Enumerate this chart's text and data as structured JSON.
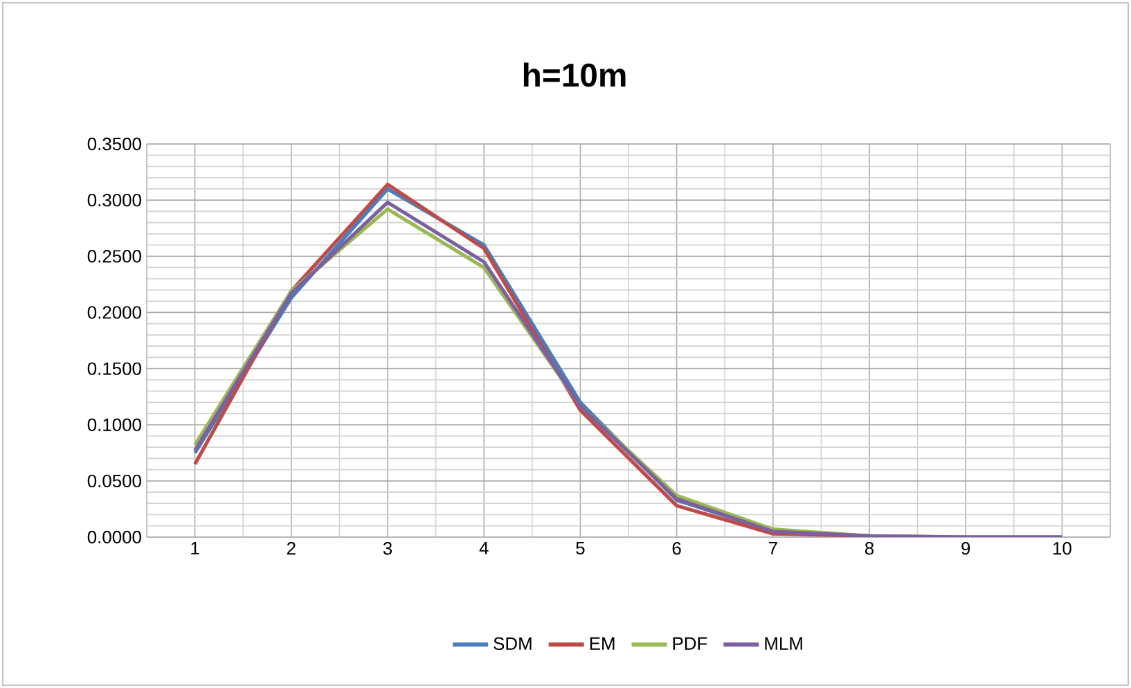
{
  "chart_data": {
    "type": "line",
    "title": "h=10m",
    "categories": [
      "1",
      "2",
      "3",
      "4",
      "5",
      "6",
      "7",
      "8",
      "9",
      "10"
    ],
    "series": [
      {
        "name": "SDM",
        "color": "#4a7ebb",
        "values": [
          0.075,
          0.213,
          0.31,
          0.26,
          0.12,
          0.033,
          0.005,
          0.001,
          null,
          null
        ]
      },
      {
        "name": "EM",
        "color": "#be4b48",
        "values": [
          0.065,
          0.219,
          0.314,
          0.257,
          0.113,
          0.028,
          0.003,
          0.001,
          0.0,
          0.0
        ]
      },
      {
        "name": "PDF",
        "color": "#98b954",
        "values": [
          0.082,
          0.219,
          0.292,
          0.24,
          0.117,
          0.037,
          0.007,
          0.001,
          0.0,
          0.0
        ]
      },
      {
        "name": "MLM",
        "color": "#7d60a0",
        "values": [
          0.077,
          0.217,
          0.298,
          0.245,
          0.117,
          0.034,
          0.005,
          0.001,
          0.0,
          0.0
        ]
      }
    ],
    "ylim": [
      0,
      0.35
    ],
    "yticks": [
      {
        "value": 0,
        "label": "0.0000"
      },
      {
        "value": 0.05,
        "label": "0.0500"
      },
      {
        "value": 0.1,
        "label": "0.1000"
      },
      {
        "value": 0.15,
        "label": "0.1500"
      },
      {
        "value": 0.2,
        "label": "0.2000"
      },
      {
        "value": 0.25,
        "label": "0.2500"
      },
      {
        "value": 0.3,
        "label": "0.3000"
      },
      {
        "value": 0.35,
        "label": "0.3500"
      }
    ],
    "grid": true,
    "legend": "bottom",
    "marker": "none",
    "line_style": "solid"
  }
}
